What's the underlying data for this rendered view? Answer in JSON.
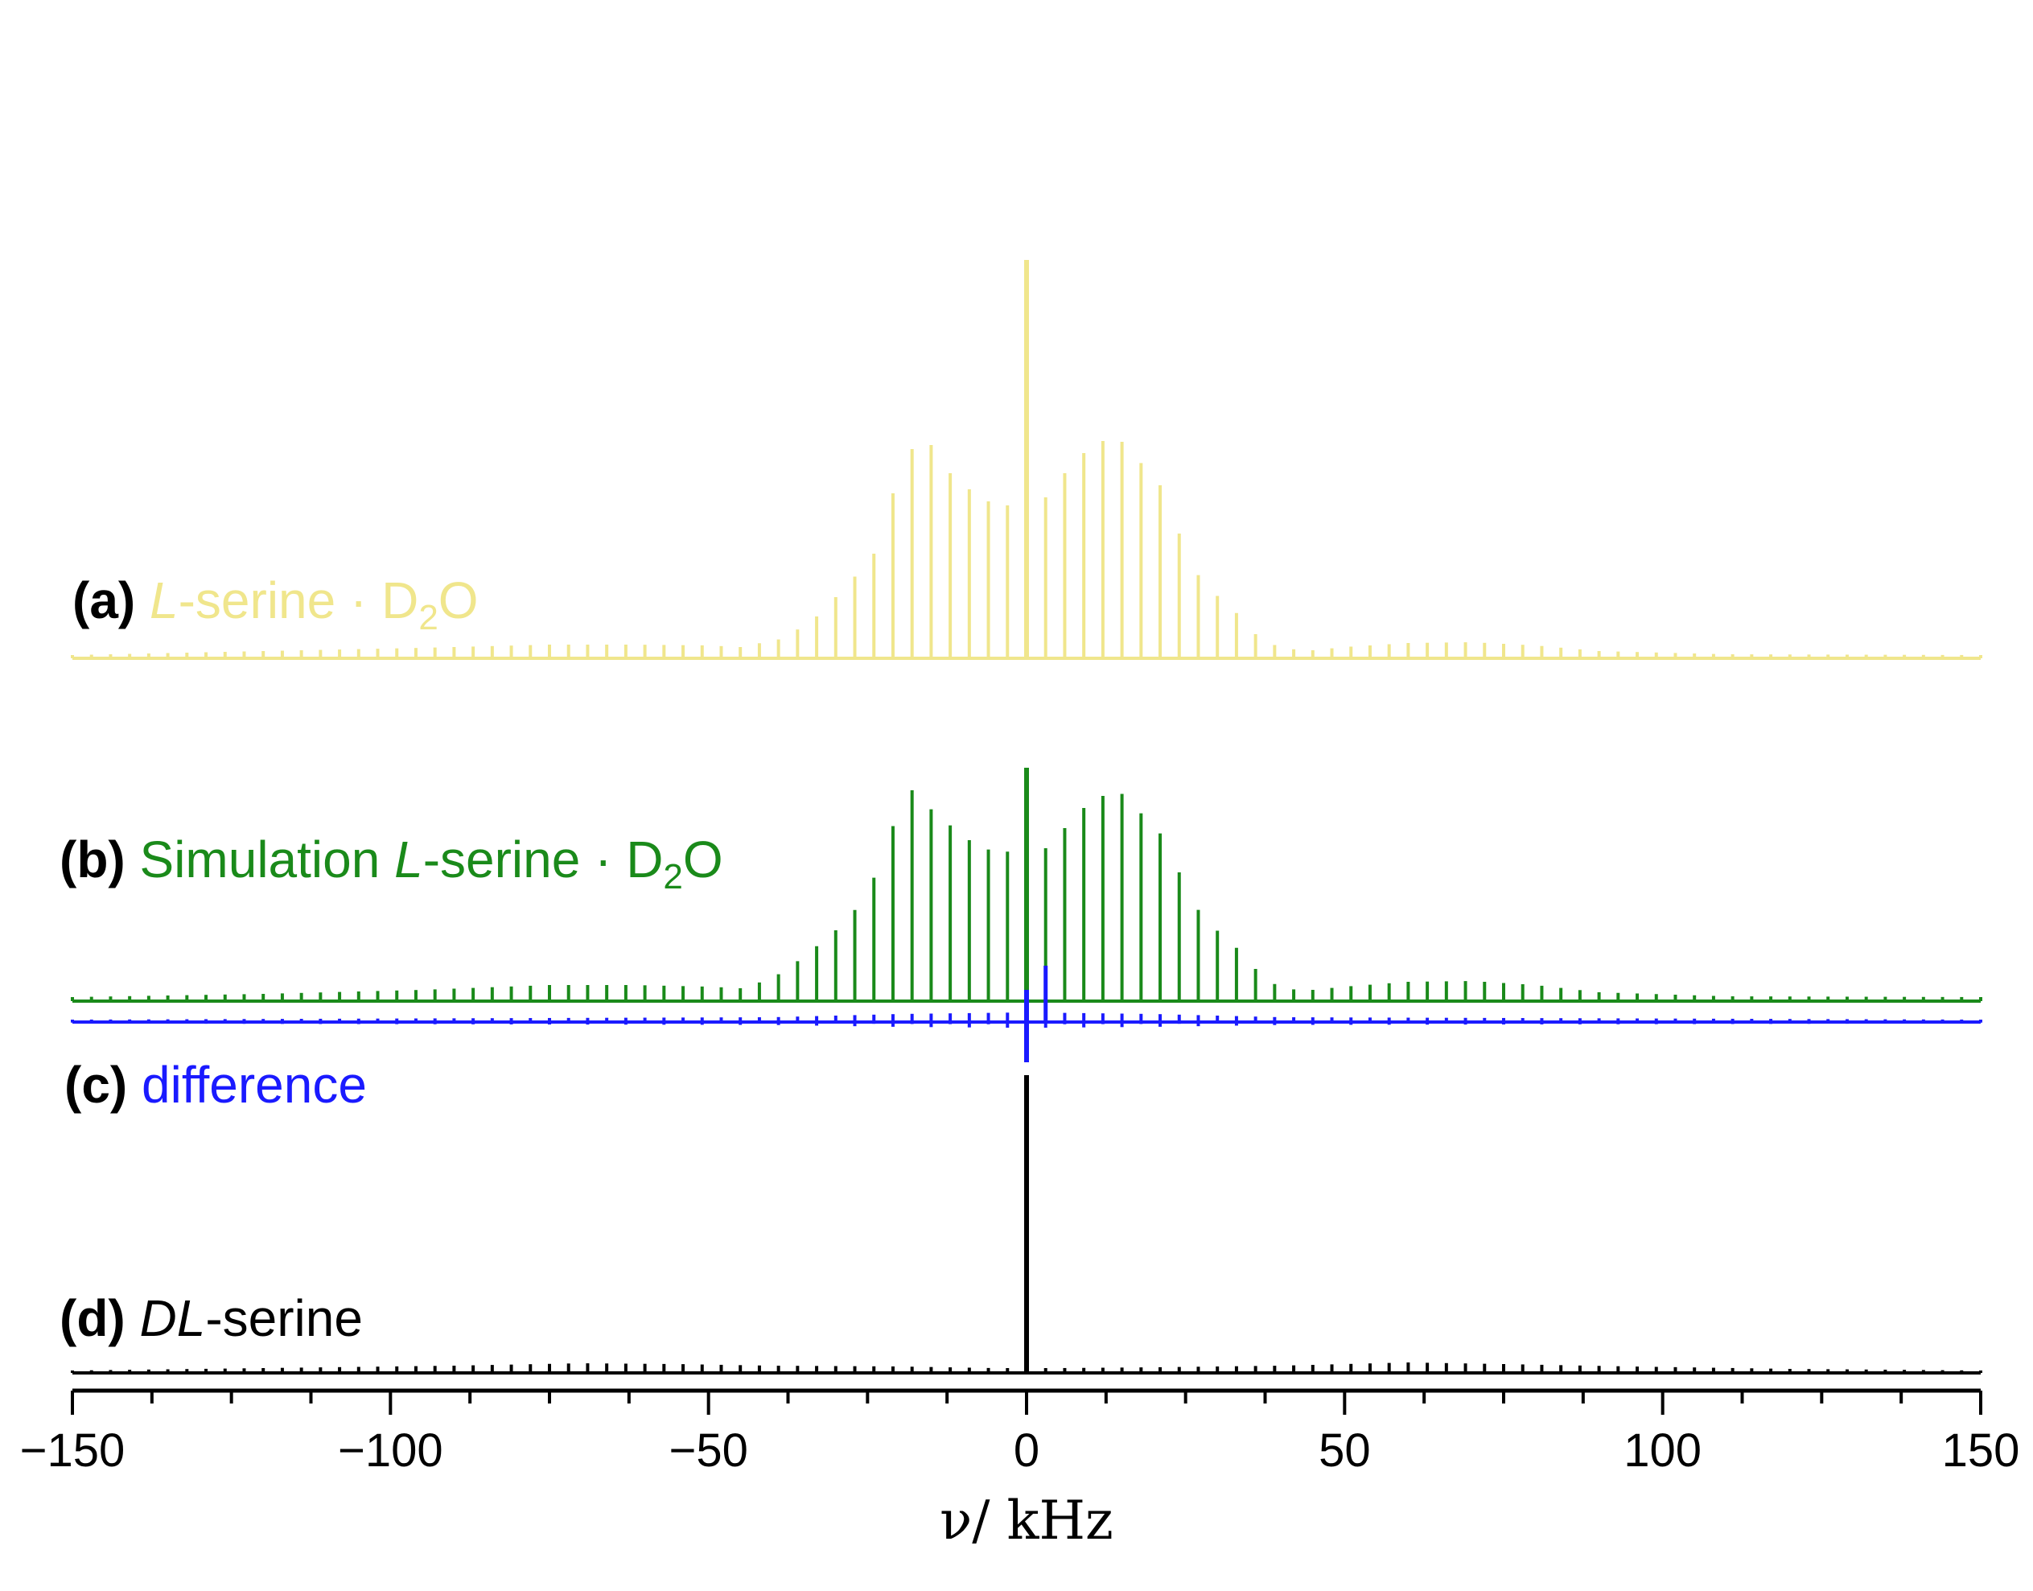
{
  "chart_data": {
    "type": "line",
    "xlabel": "ν/ kHz",
    "ylabel": "",
    "xlim": [
      -150,
      150
    ],
    "x_ticks": [
      -150,
      -100,
      -50,
      0,
      50,
      100,
      150
    ],
    "x_tick_labels": [
      "−150",
      "−100",
      "−50",
      "0",
      "50",
      "100",
      "150"
    ],
    "grid": false,
    "spinning_sideband_spacing_khz": 3.0,
    "series": [
      {
        "id": "a",
        "tag": "(a)",
        "name_parts": [
          {
            "text": "L",
            "italic": true
          },
          {
            "text": "-serine · D"
          },
          {
            "text": "2",
            "sub": true
          },
          {
            "text": "O"
          }
        ],
        "color": "#f0e68c",
        "baseline": 0,
        "center_peak_height": 495,
        "envelope": [
          [
            -150,
            4
          ],
          [
            -120,
            9
          ],
          [
            -95,
            13
          ],
          [
            -75,
            17
          ],
          [
            -62,
            17
          ],
          [
            -50,
            16
          ],
          [
            -45,
            14
          ],
          [
            -38,
            25
          ],
          [
            -33,
            52
          ],
          [
            -28,
            92
          ],
          [
            -24,
            130
          ],
          [
            -21,
            205
          ],
          [
            -19,
            245
          ],
          [
            -17,
            275
          ],
          [
            -15,
            265
          ],
          [
            -12,
            230
          ],
          [
            -9,
            210
          ],
          [
            -6,
            195
          ],
          [
            -3,
            190
          ],
          [
            3,
            200
          ],
          [
            6,
            230
          ],
          [
            9,
            255
          ],
          [
            12,
            270
          ],
          [
            14,
            280
          ],
          [
            16,
            258
          ],
          [
            19,
            235
          ],
          [
            22,
            205
          ],
          [
            25,
            130
          ],
          [
            28,
            90
          ],
          [
            32,
            65
          ],
          [
            36,
            30
          ],
          [
            40,
            12
          ],
          [
            45,
            10
          ],
          [
            50,
            14
          ],
          [
            60,
            19
          ],
          [
            70,
            20
          ],
          [
            80,
            16
          ],
          [
            90,
            9
          ],
          [
            110,
            5
          ],
          [
            150,
            4
          ]
        ]
      },
      {
        "id": "b",
        "tag": "(b)",
        "name_parts": [
          {
            "text": "Simulation "
          },
          {
            "text": "L",
            "italic": true
          },
          {
            "text": "-serine · D"
          },
          {
            "text": "2",
            "sub": true
          },
          {
            "text": "O"
          }
        ],
        "color": "#1a8a1a",
        "baseline": 0,
        "center_peak_height": 290,
        "envelope": [
          [
            -150,
            5
          ],
          [
            -120,
            9
          ],
          [
            -95,
            14
          ],
          [
            -75,
            20
          ],
          [
            -62,
            20
          ],
          [
            -50,
            18
          ],
          [
            -45,
            16
          ],
          [
            -40,
            28
          ],
          [
            -35,
            55
          ],
          [
            -30,
            88
          ],
          [
            -25,
            130
          ],
          [
            -22,
            200
          ],
          [
            -20,
            235
          ],
          [
            -18,
            262
          ],
          [
            -16,
            245
          ],
          [
            -13,
            225
          ],
          [
            -10,
            205
          ],
          [
            -7,
            190
          ],
          [
            -4,
            185
          ],
          [
            3,
            190
          ],
          [
            6,
            215
          ],
          [
            9,
            240
          ],
          [
            12,
            255
          ],
          [
            14,
            265
          ],
          [
            16,
            250
          ],
          [
            19,
            225
          ],
          [
            22,
            200
          ],
          [
            25,
            140
          ],
          [
            28,
            100
          ],
          [
            32,
            75
          ],
          [
            36,
            40
          ],
          [
            40,
            15
          ],
          [
            45,
            14
          ],
          [
            50,
            18
          ],
          [
            60,
            24
          ],
          [
            70,
            25
          ],
          [
            80,
            20
          ],
          [
            90,
            11
          ],
          [
            110,
            6
          ],
          [
            150,
            5
          ]
        ]
      },
      {
        "id": "c",
        "tag": "(c)",
        "name_parts": [
          {
            "text": "difference"
          }
        ],
        "color": "#1a1aff",
        "baseline": 0,
        "center_peak_height": 40,
        "center_dip_depth": 50,
        "extra_peak": {
          "x": 3,
          "height": 70
        },
        "envelope": [
          [
            -150,
            3
          ],
          [
            -40,
            6
          ],
          [
            -20,
            10
          ],
          [
            0,
            12
          ],
          [
            20,
            10
          ],
          [
            40,
            6
          ],
          [
            150,
            3
          ]
        ]
      },
      {
        "id": "d",
        "tag": "(d)",
        "name_parts": [
          {
            "text": "DL",
            "italic": true
          },
          {
            "text": "-serine"
          }
        ],
        "color": "#000000",
        "baseline": 0,
        "center_peak_height": 370,
        "envelope": [
          [
            -150,
            3
          ],
          [
            -120,
            6
          ],
          [
            -90,
            9
          ],
          [
            -70,
            12
          ],
          [
            -55,
            11
          ],
          [
            -40,
            9
          ],
          [
            -20,
            8
          ],
          [
            -5,
            6
          ],
          [
            5,
            6
          ],
          [
            20,
            7
          ],
          [
            40,
            9
          ],
          [
            60,
            13
          ],
          [
            75,
            11
          ],
          [
            95,
            8
          ],
          [
            120,
            5
          ],
          [
            150,
            3
          ]
        ]
      }
    ]
  }
}
